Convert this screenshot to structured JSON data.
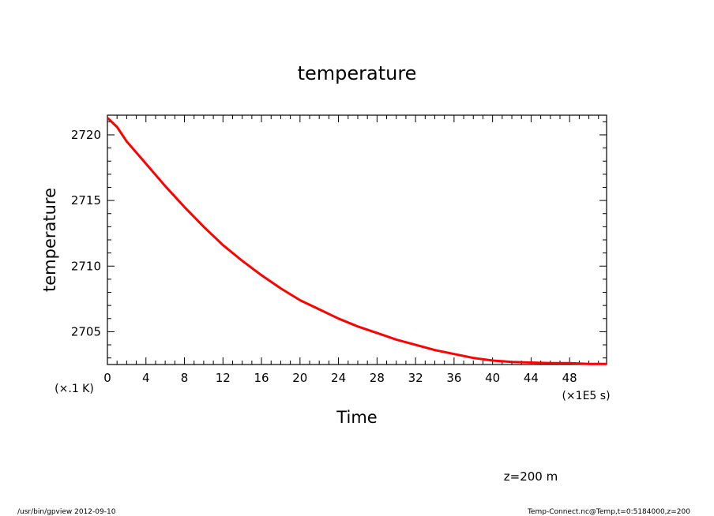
{
  "chart_data": {
    "type": "line",
    "title": "temperature",
    "xlabel": "Time",
    "ylabel": "temperature",
    "x_unit": "(×1E5 s)",
    "y_unit": "(×.1 K)",
    "xlim": [
      0,
      51.84
    ],
    "ylim": [
      2702.5,
      2721.5
    ],
    "x_ticks": [
      0,
      4,
      8,
      12,
      16,
      20,
      24,
      28,
      32,
      36,
      40,
      44,
      48
    ],
    "y_ticks": [
      2705,
      2710,
      2715,
      2720
    ],
    "grid": false,
    "series": [
      {
        "color": "#ff0000",
        "x": [
          0,
          1,
          2,
          4,
          6,
          8,
          10,
          12,
          14,
          16,
          18,
          20,
          22,
          24,
          26,
          28,
          30,
          32,
          34,
          36,
          38,
          40,
          42,
          44,
          46,
          48,
          50,
          51.84
        ],
        "y": [
          2721.3,
          2720.6,
          2719.5,
          2717.8,
          2716.1,
          2714.5,
          2713.0,
          2711.6,
          2710.4,
          2709.3,
          2708.3,
          2707.4,
          2706.7,
          2706.0,
          2705.4,
          2704.9,
          2704.4,
          2704.0,
          2703.6,
          2703.3,
          2703.0,
          2702.8,
          2702.7,
          2702.65,
          2702.6,
          2702.6,
          2702.55,
          2702.55
        ]
      }
    ]
  },
  "annotation": "z=200 m",
  "footer": {
    "left": "/usr/bin/gpview   2012-09-10",
    "right": "Temp-Connect.nc@Temp,t=0:5184000,z=200"
  }
}
